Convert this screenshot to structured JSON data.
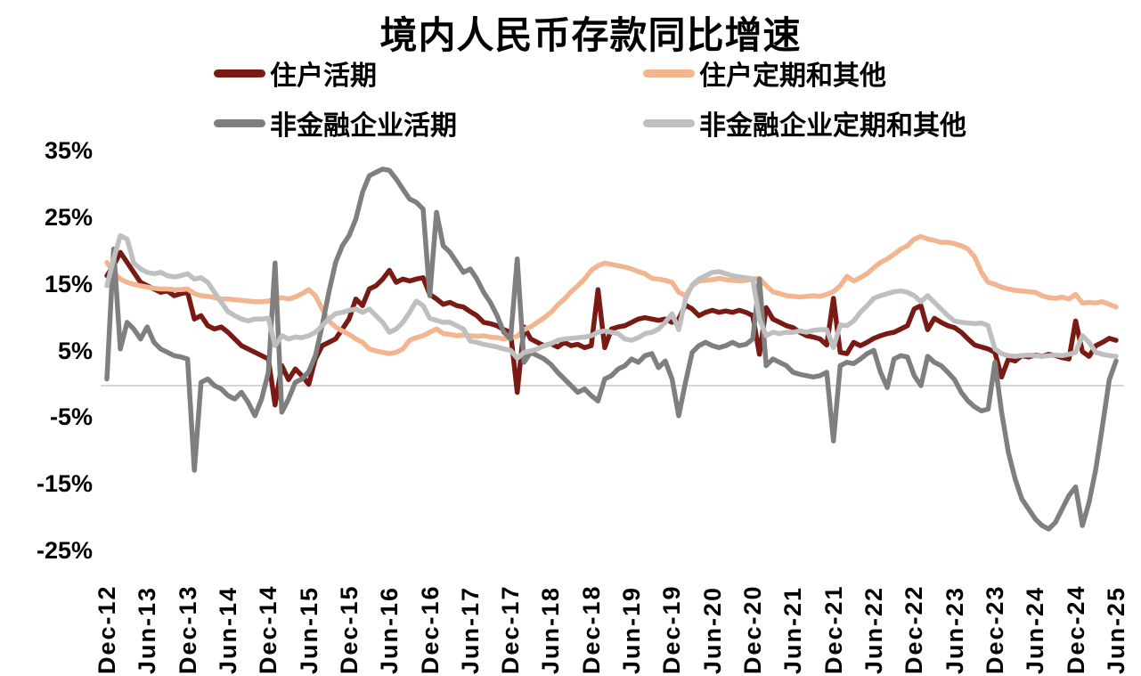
{
  "chart_data": {
    "type": "line",
    "title": "境内人民币存款同比增速",
    "y_unit": "%",
    "y_ticks": [
      35,
      25,
      15,
      5,
      -5,
      -15,
      -25
    ],
    "ylim": [
      -27,
      36
    ],
    "grid": "horizontal zero line only",
    "zero_line_color": "#d6d6d6",
    "legend_position": "top",
    "x_frequency": "monthly",
    "x_start": "Dec-12",
    "x_end": "Jun-25",
    "x_tick_labels": [
      "Dec-12",
      "Jun-13",
      "Dec-13",
      "Jun-14",
      "Dec-14",
      "Jun-15",
      "Dec-15",
      "Jun-16",
      "Dec-16",
      "Jun-17",
      "Dec-17",
      "Jun-18",
      "Dec-18",
      "Jun-19",
      "Dec-19",
      "Jun-20",
      "Dec-20",
      "Jun-21",
      "Dec-21",
      "Jun-22",
      "Dec-22",
      "Jun-23",
      "Dec-23",
      "Jun-24",
      "Dec-24",
      "Jun-25"
    ],
    "series": [
      {
        "name": "住户活期",
        "color": "#7a1a14",
        "values": [
          16.5,
          18.0,
          20.0,
          18.5,
          17.0,
          15.5,
          15.0,
          14.5,
          14.0,
          14.2,
          13.5,
          13.8,
          14.0,
          10.0,
          10.5,
          9.0,
          8.5,
          8.8,
          8.0,
          7.0,
          6.0,
          5.5,
          5.0,
          4.5,
          4.0,
          -2.9,
          3.0,
          0.9,
          2.5,
          1.5,
          0.2,
          4.0,
          6.0,
          6.5,
          7.0,
          8.5,
          10.0,
          13.0,
          12.0,
          14.5,
          15.0,
          16.0,
          17.3,
          15.5,
          16.0,
          15.7,
          16.0,
          16.2,
          13.7,
          13.0,
          12.2,
          12.5,
          12.0,
          11.8,
          11.1,
          10.5,
          9.5,
          9.3,
          9.0,
          8.4,
          8.0,
          -1.0,
          8.8,
          7.0,
          6.5,
          6.0,
          6.3,
          5.8,
          6.5,
          6.0,
          6.2,
          5.7,
          6.0,
          14.4,
          5.7,
          8.5,
          8.8,
          9.0,
          9.5,
          10.0,
          10.2,
          10.0,
          9.8,
          10.0,
          9.5,
          10.0,
          12.1,
          11.5,
          10.5,
          11.0,
          11.3,
          11.0,
          11.2,
          11.0,
          11.3,
          11.0,
          10.5,
          4.7,
          11.7,
          10.0,
          9.5,
          9.0,
          8.7,
          8.0,
          7.5,
          7.3,
          7.0,
          6.1,
          13.1,
          5.0,
          4.8,
          6.5,
          6.0,
          6.5,
          7.1,
          7.5,
          7.8,
          8.0,
          8.5,
          9.0,
          11.5,
          12.0,
          8.4,
          10.1,
          9.5,
          9.0,
          8.7,
          8.0,
          7.0,
          6.1,
          5.8,
          5.5,
          5.0,
          1.3,
          4.0,
          3.7,
          4.5,
          4.3,
          4.6,
          4.4,
          4.7,
          4.5,
          4.2,
          4.0,
          9.7,
          5.1,
          4.4,
          6.0,
          6.5,
          7.1,
          6.8
        ]
      },
      {
        "name": "住户定期和其他",
        "color": "#f3b590",
        "values": [
          18.5,
          17.0,
          16.0,
          15.5,
          15.2,
          15.0,
          14.8,
          14.6,
          14.5,
          14.5,
          14.4,
          14.4,
          14.5,
          13.8,
          13.5,
          13.4,
          13.2,
          13.0,
          13.0,
          12.9,
          12.8,
          12.7,
          12.6,
          12.6,
          12.7,
          13.0,
          13.2,
          13.0,
          13.3,
          13.8,
          14.4,
          13.5,
          11.5,
          9.7,
          8.8,
          8.2,
          7.7,
          7.0,
          6.5,
          5.5,
          5.2,
          5.0,
          4.8,
          5.0,
          5.5,
          6.8,
          7.2,
          7.5,
          8.0,
          8.5,
          7.8,
          7.7,
          7.5,
          7.6,
          7.5,
          7.4,
          7.5,
          7.3,
          7.2,
          7.0,
          7.2,
          7.4,
          8.4,
          8.8,
          9.5,
          10.2,
          11.0,
          12.1,
          13.0,
          14.1,
          15.0,
          16.0,
          17.3,
          18.0,
          18.4,
          18.2,
          18.0,
          17.8,
          17.5,
          17.1,
          16.8,
          16.1,
          16.0,
          15.8,
          15.5,
          14.0,
          13.5,
          15.0,
          15.7,
          15.8,
          15.9,
          16.1,
          15.9,
          15.8,
          15.7,
          15.8,
          16.0,
          16.1,
          15.0,
          14.1,
          13.8,
          13.5,
          13.4,
          13.3,
          13.4,
          13.5,
          13.4,
          13.7,
          14.1,
          15.0,
          16.4,
          15.7,
          16.2,
          16.8,
          17.7,
          18.5,
          19.0,
          19.7,
          20.5,
          21.0,
          22.0,
          22.4,
          22.0,
          21.8,
          21.5,
          21.5,
          21.3,
          21.0,
          20.5,
          19.3,
          17.0,
          15.5,
          15.2,
          14.8,
          14.5,
          14.3,
          14.2,
          14.1,
          14.0,
          13.5,
          13.2,
          13.1,
          13.3,
          13.0,
          13.7,
          12.4,
          12.5,
          12.4,
          12.6,
          12.2,
          11.8
        ]
      },
      {
        "name": "非金融企业活期",
        "color": "#7f7f7f",
        "values": [
          1.0,
          20.5,
          5.5,
          9.5,
          8.5,
          7.0,
          8.8,
          6.5,
          5.5,
          5.0,
          4.5,
          4.3,
          4.0,
          -12.7,
          0.5,
          1.0,
          0.0,
          -0.5,
          -1.5,
          -2.0,
          -1.0,
          -2.5,
          -4.5,
          -2.0,
          2.0,
          18.4,
          -4.0,
          -2.0,
          0.5,
          1.0,
          2.1,
          4.5,
          9.0,
          14.0,
          18.5,
          21.0,
          22.5,
          25.0,
          29.0,
          31.5,
          32.0,
          32.5,
          32.3,
          31.0,
          29.5,
          28.0,
          27.5,
          26.5,
          13.5,
          26.0,
          21.0,
          20.0,
          18.5,
          17.0,
          17.5,
          16.0,
          14.0,
          12.5,
          10.5,
          8.0,
          7.0,
          19.0,
          3.5,
          5.0,
          4.5,
          4.0,
          3.2,
          2.0,
          1.0,
          0.0,
          -1.0,
          -0.5,
          -1.5,
          -2.3,
          1.0,
          1.5,
          2.5,
          3.0,
          4.0,
          3.5,
          4.5,
          4.8,
          2.7,
          3.7,
          1.0,
          -4.5,
          0.5,
          5.0,
          6.0,
          6.5,
          6.0,
          5.7,
          6.0,
          6.5,
          6.0,
          6.2,
          7.0,
          16.0,
          3.0,
          4.0,
          3.5,
          3.0,
          2.0,
          1.7,
          1.5,
          1.3,
          1.5,
          2.0,
          -8.3,
          3.0,
          3.5,
          3.3,
          4.0,
          4.8,
          5.3,
          2.0,
          -0.3,
          4.0,
          4.5,
          4.3,
          1.5,
          0.0,
          4.4,
          3.5,
          3.0,
          2.0,
          0.9,
          -1.0,
          -2.3,
          -3.2,
          -3.8,
          -3.5,
          3.5,
          -4.0,
          -10.0,
          -14.0,
          -17.0,
          -18.5,
          -20.0,
          -21.0,
          -21.5,
          -20.5,
          -18.5,
          -16.5,
          -15.2,
          -21.0,
          -17.5,
          -12.5,
          -6.0,
          0.9,
          3.7
        ]
      },
      {
        "name": "非金融企业定期和其他",
        "color": "#bfbfbf",
        "values": [
          15.0,
          19.0,
          22.5,
          22.0,
          18.4,
          17.5,
          17.0,
          16.8,
          17.0,
          16.5,
          16.3,
          16.5,
          16.8,
          16.0,
          16.2,
          15.5,
          14.0,
          12.5,
          11.1,
          10.5,
          10.0,
          9.7,
          10.0,
          10.0,
          10.1,
          6.0,
          7.5,
          7.0,
          7.3,
          7.2,
          7.5,
          8.0,
          9.0,
          10.0,
          10.8,
          11.0,
          11.3,
          11.5,
          11.0,
          11.5,
          10.5,
          9.5,
          8.0,
          8.5,
          9.5,
          11.0,
          12.7,
          12.0,
          10.1,
          9.8,
          9.5,
          9.5,
          9.0,
          8.5,
          6.7,
          6.5,
          6.2,
          6.0,
          5.8,
          5.5,
          5.3,
          4.1,
          5.0,
          5.2,
          5.5,
          6.0,
          6.3,
          6.8,
          7.0,
          7.1,
          7.2,
          7.3,
          7.5,
          8.0,
          8.2,
          8.0,
          7.8,
          7.0,
          6.8,
          7.2,
          7.8,
          8.0,
          8.5,
          9.5,
          10.8,
          8.4,
          13.0,
          15.1,
          16.0,
          16.5,
          17.0,
          17.1,
          16.8,
          16.5,
          16.3,
          16.2,
          16.0,
          10.0,
          7.5,
          8.0,
          7.8,
          8.0,
          8.0,
          8.2,
          8.0,
          8.3,
          8.4,
          8.4,
          5.7,
          9.1,
          9.0,
          9.7,
          11.0,
          12.0,
          13.1,
          13.5,
          13.8,
          14.1,
          14.2,
          14.0,
          13.5,
          12.6,
          13.5,
          12.5,
          11.5,
          10.5,
          9.7,
          9.5,
          9.4,
          9.3,
          9.4,
          9.0,
          5.5,
          4.8,
          4.5,
          4.4,
          4.5,
          4.6,
          4.5,
          4.4,
          4.5,
          4.6,
          4.5,
          4.7,
          5.0,
          7.5,
          6.5,
          5.0,
          4.7,
          4.5,
          4.4
        ]
      }
    ]
  }
}
